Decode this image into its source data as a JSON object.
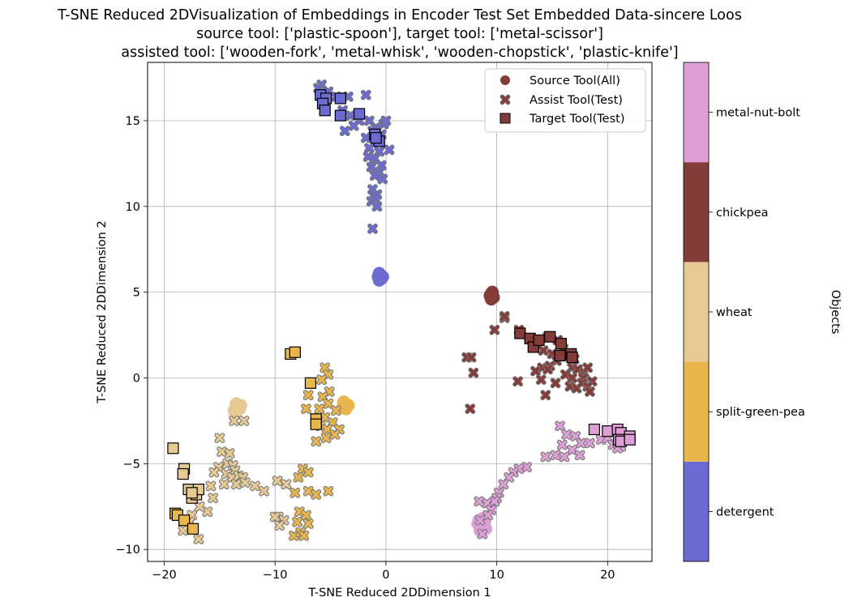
{
  "chart_data": {
    "type": "scatter",
    "title_lines": [
      "T-SNE Reduced 2DVisualization of Embeddings in Encoder Test Set Embedded Data-sincere Loos",
      "source tool: ['plastic-spoon'], target tool: ['metal-scissor']",
      "assisted tool: ['wooden-fork', 'metal-whisk', 'wooden-chopstick', 'plastic-knife']"
    ],
    "xlabel": "T-SNE Reduced 2DDimension 1",
    "ylabel": "T-SNE Reduced 2DDimension 2",
    "xlim": [
      -21.5,
      24
    ],
    "ylim": [
      -10.7,
      18.4
    ],
    "xticks": [
      -20,
      -10,
      0,
      10,
      20
    ],
    "yticks": [
      -10,
      -5,
      0,
      5,
      10,
      15
    ],
    "xtick_labels": [
      "−20",
      "−10",
      "0",
      "10",
      "20"
    ],
    "ytick_labels": [
      "−10",
      "−5",
      "0",
      "5",
      "10",
      "15"
    ],
    "grid": true,
    "legend_position": "top-right",
    "legend": [
      {
        "label": "Source Tool(All)",
        "marker": "circle"
      },
      {
        "label": "Assist Tool(Test)",
        "marker": "x"
      },
      {
        "label": "Target Tool(Test)",
        "marker": "square"
      }
    ],
    "colorbar": {
      "label": "Objects",
      "categories": [
        "detergent",
        "split-green-pea",
        "wheat",
        "chickpea",
        "metal-nut-bolt"
      ],
      "colors": [
        "#6b6bd2",
        "#e8b64c",
        "#e6c993",
        "#843c39",
        "#de9ed6"
      ]
    },
    "series": [
      {
        "object": "detergent",
        "source": [
          [
            -0.6,
            6.1
          ],
          [
            -0.4,
            5.8
          ],
          [
            -0.7,
            5.9
          ],
          [
            -0.5,
            6.0
          ],
          [
            -0.3,
            5.9
          ],
          [
            -0.6,
            5.7
          ]
        ],
        "assist": [
          [
            -5.8,
            17.1
          ],
          [
            -6.1,
            16.9
          ],
          [
            -5.2,
            16.7
          ],
          [
            -4.5,
            16.4
          ],
          [
            -3.4,
            16.4
          ],
          [
            -1.8,
            16.5
          ],
          [
            -5.5,
            15.8
          ],
          [
            -3.9,
            15.6
          ],
          [
            -3.2,
            15.3
          ],
          [
            -2.4,
            15.0
          ],
          [
            -1.5,
            15.0
          ],
          [
            -0.2,
            14.8
          ],
          [
            -0.9,
            14.6
          ],
          [
            0.0,
            15.0
          ],
          [
            -2.9,
            14.7
          ],
          [
            -3.7,
            14.4
          ],
          [
            -1.2,
            14.4
          ],
          [
            -1.8,
            14.0
          ],
          [
            -0.4,
            14.2
          ],
          [
            -1.5,
            13.4
          ],
          [
            -0.6,
            13.2
          ],
          [
            0.3,
            13.3
          ],
          [
            -1.0,
            12.8
          ],
          [
            -1.6,
            12.9
          ],
          [
            -0.4,
            12.4
          ],
          [
            -1.3,
            12.3
          ],
          [
            -0.6,
            12.0
          ],
          [
            -1.0,
            11.8
          ],
          [
            -0.3,
            11.6
          ],
          [
            -1.2,
            11.0
          ],
          [
            -0.8,
            10.7
          ],
          [
            -1.3,
            10.3
          ],
          [
            -1.0,
            10.5
          ],
          [
            -1.2,
            8.7
          ],
          [
            -0.8,
            10.0
          ]
        ],
        "target": [
          [
            -5.9,
            16.5
          ],
          [
            -5.4,
            16.3
          ],
          [
            -4.1,
            16.3
          ],
          [
            -5.7,
            16.0
          ],
          [
            -5.5,
            15.6
          ],
          [
            -4.1,
            15.3
          ],
          [
            -2.4,
            15.4
          ],
          [
            -1.0,
            14.2
          ],
          [
            -0.6,
            13.8
          ],
          [
            -0.9,
            14.0
          ]
        ]
      },
      {
        "object": "split-green-pea",
        "source": [
          [
            -3.8,
            -1.4
          ],
          [
            -3.5,
            -1.6
          ],
          [
            -3.9,
            -1.7
          ],
          [
            -3.7,
            -1.5
          ],
          [
            -3.4,
            -1.6
          ],
          [
            -3.6,
            -1.8
          ]
        ],
        "assist": [
          [
            -5.5,
            0.6
          ],
          [
            -5.2,
            0.2
          ],
          [
            -5.8,
            -0.1
          ],
          [
            -5.1,
            -0.8
          ],
          [
            -5.7,
            -1.1
          ],
          [
            -5.2,
            -1.5
          ],
          [
            -6.0,
            -1.8
          ],
          [
            -4.5,
            -1.9
          ],
          [
            -5.5,
            -2.3
          ],
          [
            -4.8,
            -2.6
          ],
          [
            -5.9,
            -2.8
          ],
          [
            -5.3,
            -3.0
          ],
          [
            -4.2,
            -3.0
          ],
          [
            -5.4,
            -3.5
          ],
          [
            -4.6,
            -3.3
          ],
          [
            -7.0,
            -1.0
          ],
          [
            -7.2,
            -1.8
          ],
          [
            -6.3,
            -3.7
          ],
          [
            -7.5,
            -5.3
          ],
          [
            -7.0,
            -5.5
          ],
          [
            -7.9,
            -5.8
          ],
          [
            -8.2,
            -6.7
          ],
          [
            -7.0,
            -6.6
          ],
          [
            -6.3,
            -6.8
          ],
          [
            -5.2,
            -6.6
          ],
          [
            -7.8,
            -7.8
          ],
          [
            -7.2,
            -8.0
          ],
          [
            -7.0,
            -8.5
          ],
          [
            -8.0,
            -8.4
          ],
          [
            -8.3,
            -9.2
          ],
          [
            -7.7,
            -9.0
          ],
          [
            -7.4,
            -9.2
          ]
        ],
        "target": [
          [
            -8.6,
            1.4
          ],
          [
            -8.2,
            1.5
          ],
          [
            -6.8,
            -0.3
          ],
          [
            -6.3,
            -2.4
          ],
          [
            -6.3,
            -2.7
          ],
          [
            -19.0,
            -7.9
          ],
          [
            -18.8,
            -8.0
          ],
          [
            -18.2,
            -8.3
          ],
          [
            -17.4,
            -8.8
          ]
        ]
      },
      {
        "object": "wheat",
        "source": [
          [
            -13.5,
            -1.5
          ],
          [
            -13.2,
            -1.8
          ],
          [
            -13.6,
            -2.0
          ],
          [
            -13.4,
            -1.7
          ],
          [
            -13.1,
            -1.6
          ],
          [
            -13.7,
            -1.9
          ]
        ],
        "assist": [
          [
            -13.7,
            -2.5
          ],
          [
            -12.8,
            -2.5
          ],
          [
            -15.0,
            -3.5
          ],
          [
            -14.8,
            -4.3
          ],
          [
            -14.1,
            -4.4
          ],
          [
            -14.3,
            -5.0
          ],
          [
            -13.8,
            -5.1
          ],
          [
            -15.1,
            -5.2
          ],
          [
            -13.6,
            -5.4
          ],
          [
            -14.4,
            -5.6
          ],
          [
            -13.9,
            -5.8
          ],
          [
            -13.3,
            -5.7
          ],
          [
            -12.9,
            -5.8
          ],
          [
            -15.5,
            -5.5
          ],
          [
            -15.8,
            -6.3
          ],
          [
            -14.6,
            -6.2
          ],
          [
            -13.5,
            -6.2
          ],
          [
            -12.7,
            -6.1
          ],
          [
            -11.8,
            -6.3
          ],
          [
            -11.0,
            -6.6
          ],
          [
            -9.8,
            -6.0
          ],
          [
            -9.0,
            -6.2
          ],
          [
            -15.6,
            -7.0
          ],
          [
            -16.1,
            -7.8
          ],
          [
            -16.8,
            -7.5
          ],
          [
            -17.5,
            -8.0
          ],
          [
            -17.7,
            -8.4
          ],
          [
            -18.3,
            -8.9
          ],
          [
            -16.9,
            -9.4
          ],
          [
            -9.7,
            -8.1
          ],
          [
            -9.2,
            -8.3
          ],
          [
            -9.6,
            -8.6
          ],
          [
            -10.0,
            -8.1
          ]
        ],
        "target": [
          [
            -19.2,
            -4.1
          ],
          [
            -18.2,
            -5.3
          ],
          [
            -18.3,
            -5.6
          ],
          [
            -17.8,
            -6.5
          ],
          [
            -17.5,
            -7.0
          ],
          [
            -17.1,
            -6.8
          ],
          [
            -16.9,
            -6.5
          ],
          [
            -17.5,
            -6.7
          ]
        ]
      },
      {
        "object": "chickpea",
        "source": [
          [
            9.5,
            4.9
          ],
          [
            9.7,
            4.7
          ],
          [
            9.4,
            4.8
          ],
          [
            9.6,
            5.0
          ],
          [
            9.5,
            4.6
          ]
        ],
        "assist": [
          [
            10.7,
            3.5
          ],
          [
            9.8,
            2.8
          ],
          [
            10.7,
            3.6
          ],
          [
            12.0,
            2.8
          ],
          [
            14.6,
            2.4
          ],
          [
            15.5,
            2.2
          ],
          [
            14.2,
            1.6
          ],
          [
            15.0,
            1.4
          ],
          [
            16.0,
            1.7
          ],
          [
            16.5,
            1.3
          ],
          [
            17.0,
            1.1
          ],
          [
            15.4,
            1.0
          ],
          [
            14.1,
            0.6
          ],
          [
            14.8,
            0.7
          ],
          [
            16.8,
            0.6
          ],
          [
            17.3,
            0.5
          ],
          [
            17.9,
            0.3
          ],
          [
            18.2,
            0.6
          ],
          [
            13.5,
            0.4
          ],
          [
            14.6,
            0.5
          ],
          [
            16.2,
            0.2
          ],
          [
            16.8,
            0.0
          ],
          [
            17.8,
            0.0
          ],
          [
            18.6,
            -0.2
          ],
          [
            14.0,
            -0.1
          ],
          [
            11.9,
            -0.2
          ],
          [
            7.3,
            1.2
          ],
          [
            7.7,
            1.2
          ],
          [
            7.9,
            0.3
          ],
          [
            7.6,
            -1.8
          ],
          [
            15.3,
            -0.3
          ],
          [
            16.6,
            -0.5
          ],
          [
            17.2,
            -0.6
          ],
          [
            17.7,
            -0.3
          ],
          [
            18.2,
            -0.5
          ],
          [
            18.4,
            -0.8
          ],
          [
            14.4,
            -1.0
          ]
        ],
        "target": [
          [
            12.1,
            2.6
          ],
          [
            13.0,
            2.3
          ],
          [
            13.3,
            1.8
          ],
          [
            13.8,
            2.2
          ],
          [
            14.8,
            2.4
          ],
          [
            15.8,
            2.0
          ],
          [
            15.7,
            1.3
          ],
          [
            16.7,
            1.4
          ],
          [
            16.8,
            1.2
          ]
        ]
      },
      {
        "object": "metal-nut-bolt",
        "source": [
          [
            8.4,
            -8.3
          ],
          [
            8.8,
            -8.6
          ],
          [
            8.5,
            -8.9
          ],
          [
            8.9,
            -8.4
          ],
          [
            8.6,
            -8.7
          ],
          [
            8.3,
            -8.5
          ],
          [
            9.0,
            -8.8
          ],
          [
            8.7,
            -8.2
          ]
        ],
        "assist": [
          [
            15.7,
            -2.8
          ],
          [
            16.3,
            -3.3
          ],
          [
            17.1,
            -3.4
          ],
          [
            17.6,
            -3.8
          ],
          [
            18.4,
            -3.8
          ],
          [
            19.4,
            -3.6
          ],
          [
            20.0,
            -3.5
          ],
          [
            15.9,
            -3.9
          ],
          [
            16.8,
            -4.2
          ],
          [
            17.5,
            -4.5
          ],
          [
            16.1,
            -4.6
          ],
          [
            15.3,
            -4.5
          ],
          [
            14.4,
            -4.6
          ],
          [
            12.7,
            -5.2
          ],
          [
            12.0,
            -5.3
          ],
          [
            11.5,
            -5.5
          ],
          [
            11.1,
            -5.8
          ],
          [
            10.6,
            -6.2
          ],
          [
            10.2,
            -6.7
          ],
          [
            10.0,
            -7.0
          ],
          [
            9.8,
            -7.2
          ],
          [
            9.1,
            -7.3
          ],
          [
            8.4,
            -7.2
          ],
          [
            9.5,
            -7.7
          ],
          [
            9.2,
            -8.0
          ],
          [
            8.5,
            -8.3
          ],
          [
            8.7,
            -9.1
          ],
          [
            20.5,
            -3.9
          ],
          [
            21.2,
            -4.0
          ],
          [
            20.9,
            -4.1
          ]
        ],
        "target": [
          [
            18.8,
            -3.0
          ],
          [
            20.0,
            -3.1
          ],
          [
            20.9,
            -3.0
          ],
          [
            21.2,
            -3.2
          ],
          [
            21.0,
            -3.6
          ],
          [
            21.2,
            -3.7
          ],
          [
            22.0,
            -3.4
          ],
          [
            22.0,
            -3.6
          ]
        ]
      }
    ]
  }
}
